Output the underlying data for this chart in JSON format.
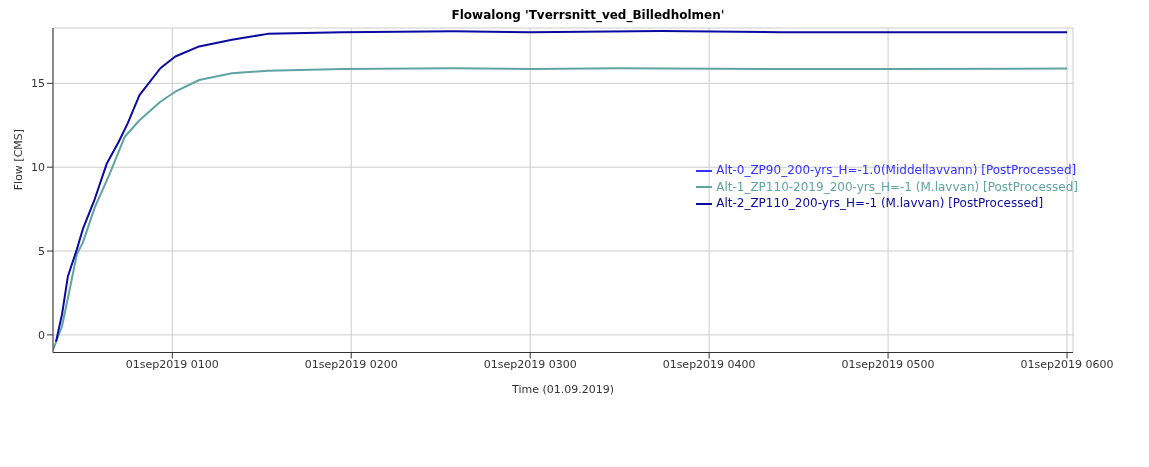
{
  "chart_data": {
    "type": "line",
    "title": "Flowalong 'Tverrsnitt_ved_Billedholmen'",
    "xlabel": "Time (01.09.2019)",
    "ylabel": "Flow [CMS]",
    "xlim": [
      "2019-09-01T00:20",
      "2019-09-01T06:02"
    ],
    "xticks": [
      {
        "value": "2019-09-01T01:00",
        "label": "01sep2019 0100"
      },
      {
        "value": "2019-09-01T02:00",
        "label": "01sep2019 0200"
      },
      {
        "value": "2019-09-01T03:00",
        "label": "01sep2019 0300"
      },
      {
        "value": "2019-09-01T04:00",
        "label": "01sep2019 0400"
      },
      {
        "value": "2019-09-01T05:00",
        "label": "01sep2019 0500"
      },
      {
        "value": "2019-09-01T06:00",
        "label": "01sep2019 0600"
      }
    ],
    "ylim": [
      -1.05,
      18.3
    ],
    "yticks": [
      0,
      5,
      10,
      15
    ],
    "grid": true,
    "legend": "top right",
    "marker": "none",
    "line_style": "solid",
    "series": [
      {
        "name": "Alt-0_ZP90_200-yrs_H=-1.0(Middellavvann) [PostProcessed]",
        "color": "#3333ff"
      },
      {
        "name": "Alt-1_ZP110-2019_200-yrs_H=-1 (M.lavvan) [PostProcessed]",
        "color": "#5fa3a3",
        "x": [
          "2019-09-01T00:20",
          "2019-09-01T00:23",
          "2019-09-01T00:25",
          "2019-09-01T00:28",
          "2019-09-01T00:30",
          "2019-09-01T00:34",
          "2019-09-01T00:39",
          "2019-09-01T00:44",
          "2019-09-01T00:49",
          "2019-09-01T00:56",
          "2019-09-01T01:01",
          "2019-09-01T01:09",
          "2019-09-01T01:20",
          "2019-09-01T01:32",
          "2019-09-01T01:57",
          "2019-09-01T02:34",
          "2019-09-01T03:00",
          "2019-09-01T03:30",
          "2019-09-01T04:24",
          "2019-09-01T05:00",
          "2019-09-01T06:00"
        ],
        "values": [
          -0.9,
          0.5,
          2.2,
          4.8,
          5.5,
          7.6,
          9.6,
          11.8,
          12.8,
          13.9,
          14.5,
          15.2,
          15.6,
          15.75,
          15.85,
          15.9,
          15.85,
          15.9,
          15.85,
          15.85,
          15.88
        ]
      },
      {
        "name": "Alt-2_ZP110_200-yrs_H=-1 (M.lavvan) [PostProcessed]",
        "color": "#0a0aa0",
        "x": [
          "2019-09-01T00:21",
          "2019-09-01T00:23",
          "2019-09-01T00:25",
          "2019-09-01T00:28",
          "2019-09-01T00:30",
          "2019-09-01T00:34",
          "2019-09-01T00:38",
          "2019-09-01T00:42",
          "2019-09-01T00:45",
          "2019-09-01T00:49",
          "2019-09-01T00:56",
          "2019-09-01T01:01",
          "2019-09-01T01:09",
          "2019-09-01T01:20",
          "2019-09-01T01:32",
          "2019-09-01T01:57",
          "2019-09-01T02:34",
          "2019-09-01T03:00",
          "2019-09-01T03:44",
          "2019-09-01T04:24",
          "2019-09-01T05:00",
          "2019-09-01T06:00"
        ],
        "values": [
          -0.4,
          1.2,
          3.5,
          5.1,
          6.3,
          8.1,
          10.2,
          11.5,
          12.6,
          14.3,
          15.9,
          16.6,
          17.2,
          17.6,
          17.95,
          18.05,
          18.1,
          18.05,
          18.12,
          18.05,
          18.05,
          18.05
        ]
      }
    ]
  }
}
